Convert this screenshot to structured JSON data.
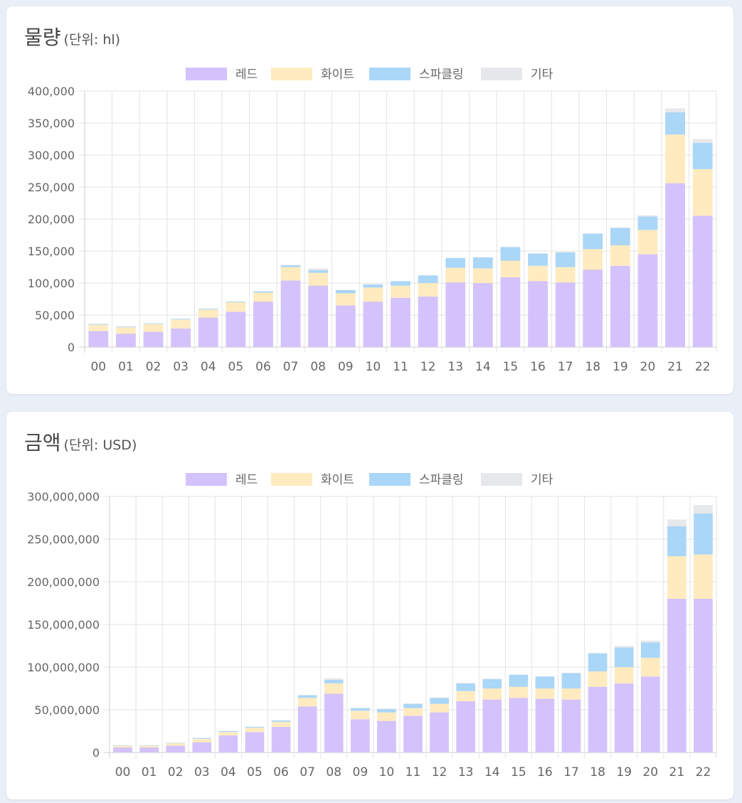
{
  "colors": {
    "red": "#d4c2fc",
    "white": "#ffebbf",
    "sparkling": "#aad6f7",
    "other": "#e7e8eb",
    "grid": "#e3e3e3",
    "axis": "#cfcfcf",
    "text": "#666666"
  },
  "legend": [
    "레드",
    "화이트",
    "스파클링",
    "기타"
  ],
  "chart_data": [
    {
      "type": "bar",
      "stacked": true,
      "title": "물량",
      "unit_label": "(단위: hl)",
      "categories": [
        "00",
        "01",
        "02",
        "03",
        "04",
        "05",
        "06",
        "07",
        "08",
        "09",
        "10",
        "11",
        "12",
        "13",
        "14",
        "15",
        "16",
        "17",
        "18",
        "19",
        "20",
        "21",
        "22"
      ],
      "ylim": [
        0,
        400000
      ],
      "yticks": [
        0,
        50000,
        100000,
        150000,
        200000,
        250000,
        300000,
        350000,
        400000
      ],
      "ytick_labels": [
        "0",
        "50,000",
        "100,000",
        "150,000",
        "200,000",
        "250,000",
        "300,000",
        "350,000",
        "400,000"
      ],
      "grid": true,
      "legend_position": "top-center",
      "series": [
        {
          "name": "레드",
          "values": [
            25000,
            21000,
            24000,
            29000,
            46000,
            55000,
            71000,
            104000,
            96000,
            65000,
            71000,
            77000,
            79000,
            101000,
            100000,
            109000,
            103000,
            101000,
            121000,
            127000,
            145000,
            256000,
            205000
          ]
        },
        {
          "name": "화이트",
          "values": [
            10000,
            10000,
            12000,
            14000,
            13000,
            15000,
            14000,
            21000,
            20000,
            19000,
            22000,
            19000,
            21000,
            23000,
            23000,
            26000,
            24000,
            24000,
            32000,
            32000,
            38000,
            76000,
            73000
          ]
        },
        {
          "name": "스파클링",
          "values": [
            1000,
            1000,
            1000,
            1000,
            1000,
            1000,
            2000,
            3000,
            4000,
            5000,
            5000,
            7000,
            12000,
            15000,
            17000,
            21000,
            19000,
            23000,
            24000,
            27000,
            21000,
            35000,
            41000
          ]
        },
        {
          "name": "기타",
          "values": [
            500,
            500,
            500,
            500,
            500,
            500,
            500,
            500,
            3000,
            500,
            500,
            500,
            500,
            500,
            500,
            1000,
            500,
            1000,
            1000,
            1000,
            2000,
            6000,
            6000
          ]
        }
      ]
    },
    {
      "type": "bar",
      "stacked": true,
      "title": "금액",
      "unit_label": "(단위: USD)",
      "categories": [
        "00",
        "01",
        "02",
        "03",
        "04",
        "05",
        "06",
        "07",
        "08",
        "09",
        "10",
        "11",
        "12",
        "13",
        "14",
        "15",
        "16",
        "17",
        "18",
        "19",
        "20",
        "21",
        "22"
      ],
      "ylim": [
        0,
        300000000
      ],
      "yticks": [
        0,
        50000000,
        100000000,
        150000000,
        200000000,
        250000000,
        300000000
      ],
      "ytick_labels": [
        "0",
        "50,000,000",
        "100,000,000",
        "150,000,000",
        "200,000,000",
        "250,000,000",
        "300,000,000"
      ],
      "grid": true,
      "legend_position": "top-center",
      "series": [
        {
          "name": "레드",
          "values": [
            6000000,
            6000000,
            8000000,
            12000000,
            20000000,
            24000000,
            30000000,
            54000000,
            69000000,
            39000000,
            37000000,
            43000000,
            47000000,
            60000000,
            62000000,
            64000000,
            63000000,
            62000000,
            77000000,
            81000000,
            89000000,
            180000000,
            180000000
          ]
        },
        {
          "name": "화이트",
          "values": [
            2000000,
            2000000,
            3000000,
            4000000,
            4000000,
            5000000,
            6000000,
            10000000,
            12000000,
            10000000,
            10000000,
            9000000,
            10000000,
            12000000,
            13000000,
            13000000,
            12000000,
            13000000,
            18000000,
            19000000,
            22000000,
            50000000,
            52000000
          ]
        },
        {
          "name": "스파클링",
          "values": [
            500000,
            500000,
            500000,
            1000000,
            1000000,
            1000000,
            1500000,
            3000000,
            4000000,
            3000000,
            4000000,
            5000000,
            7000000,
            9000000,
            11000000,
            14000000,
            14000000,
            18000000,
            21000000,
            23000000,
            18000000,
            35000000,
            48000000
          ]
        },
        {
          "name": "기타",
          "values": [
            200000,
            200000,
            200000,
            200000,
            200000,
            200000,
            200000,
            500000,
            2000000,
            500000,
            500000,
            500000,
            500000,
            500000,
            500000,
            500000,
            500000,
            500000,
            1000000,
            2000000,
            2000000,
            8000000,
            10000000
          ]
        }
      ]
    }
  ]
}
